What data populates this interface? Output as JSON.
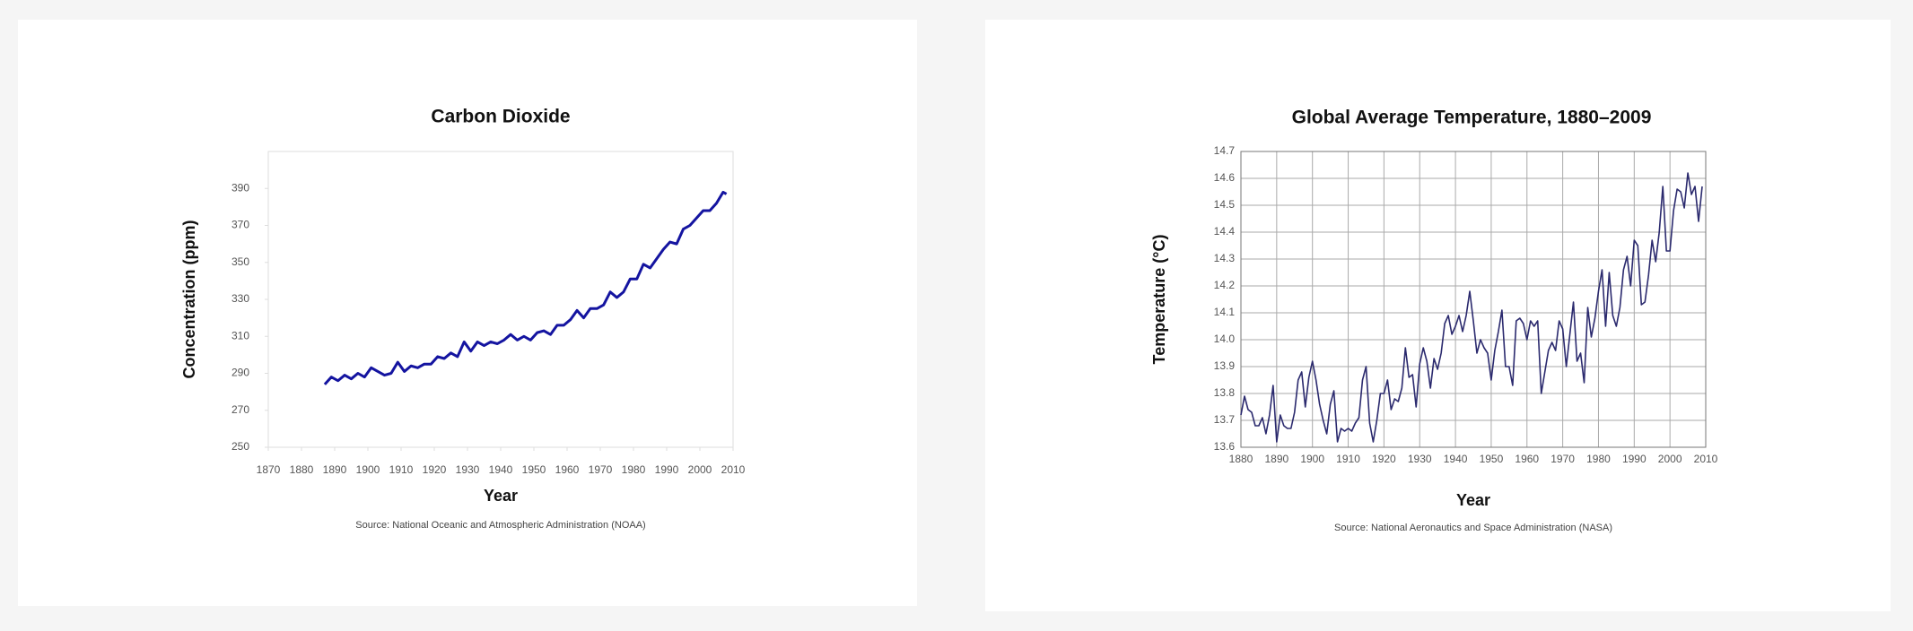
{
  "chart_data": [
    {
      "type": "line",
      "title": "Carbon Dioxide",
      "x_label": "Year",
      "y_label": "Concentration (ppm)",
      "source": "Source: National Oceanic and Atmospheric Administration (NOAA)",
      "x": [
        1887,
        1889,
        1891,
        1893,
        1895,
        1897,
        1899,
        1901,
        1903,
        1905,
        1907,
        1909,
        1911,
        1913,
        1915,
        1917,
        1919,
        1921,
        1923,
        1925,
        1927,
        1929,
        1931,
        1933,
        1935,
        1937,
        1939,
        1941,
        1943,
        1945,
        1947,
        1949,
        1951,
        1953,
        1955,
        1957,
        1959,
        1961,
        1963,
        1965,
        1967,
        1969,
        1971,
        1973,
        1975,
        1977,
        1979,
        1981,
        1983,
        1985,
        1987,
        1989,
        1991,
        1993,
        1995,
        1997,
        1999,
        2001,
        2003,
        2005,
        2007,
        2008
      ],
      "series": [
        {
          "name": "CO2",
          "color": "#1414a0",
          "values": [
            284,
            288,
            286,
            289,
            287,
            290,
            288,
            293,
            291,
            289,
            290,
            296,
            291,
            294,
            293,
            295,
            295,
            299,
            298,
            301,
            299,
            307,
            302,
            307,
            305,
            307,
            306,
            308,
            311,
            308,
            310,
            308,
            312,
            313,
            311,
            316,
            316,
            319,
            324,
            320,
            325,
            325,
            327,
            334,
            331,
            334,
            341,
            341,
            349,
            347,
            352,
            357,
            361,
            360,
            368,
            370,
            374,
            378,
            378,
            382,
            388,
            387
          ]
        }
      ],
      "xlim": [
        1870,
        2010
      ],
      "xticks": [
        1870,
        1880,
        1890,
        1900,
        1910,
        1920,
        1930,
        1940,
        1950,
        1960,
        1970,
        1980,
        1990,
        2000,
        2010
      ],
      "ylim": [
        250,
        410
      ],
      "yticks": [
        250,
        270,
        290,
        310,
        330,
        350,
        370,
        390
      ],
      "grid": false
    },
    {
      "type": "line",
      "title": "Global Average Temperature, 1880–2009",
      "x_label": "Year",
      "y_label": "Temperature (°C)",
      "source": "Source: National Aeronautics and Space Administration (NASA)",
      "x": [
        1880,
        1881,
        1882,
        1883,
        1884,
        1885,
        1886,
        1887,
        1888,
        1889,
        1890,
        1891,
        1892,
        1893,
        1894,
        1895,
        1896,
        1897,
        1898,
        1899,
        1900,
        1901,
        1902,
        1903,
        1904,
        1905,
        1906,
        1907,
        1908,
        1909,
        1910,
        1911,
        1912,
        1913,
        1914,
        1915,
        1916,
        1917,
        1918,
        1919,
        1920,
        1921,
        1922,
        1923,
        1924,
        1925,
        1926,
        1927,
        1928,
        1929,
        1930,
        1931,
        1932,
        1933,
        1934,
        1935,
        1936,
        1937,
        1938,
        1939,
        1940,
        1941,
        1942,
        1943,
        1944,
        1945,
        1946,
        1947,
        1948,
        1949,
        1950,
        1951,
        1952,
        1953,
        1954,
        1955,
        1956,
        1957,
        1958,
        1959,
        1960,
        1961,
        1962,
        1963,
        1964,
        1965,
        1966,
        1967,
        1968,
        1969,
        1970,
        1971,
        1972,
        1973,
        1974,
        1975,
        1976,
        1977,
        1978,
        1979,
        1980,
        1981,
        1982,
        1983,
        1984,
        1985,
        1986,
        1987,
        1988,
        1989,
        1990,
        1991,
        1992,
        1993,
        1994,
        1995,
        1996,
        1997,
        1998,
        1999,
        2000,
        2001,
        2002,
        2003,
        2004,
        2005,
        2006,
        2007,
        2008,
        2009
      ],
      "series": [
        {
          "name": "Temperature",
          "color": "#2b2a6e",
          "values": [
            13.72,
            13.79,
            13.74,
            13.73,
            13.68,
            13.68,
            13.71,
            13.65,
            13.72,
            13.83,
            13.62,
            13.72,
            13.68,
            13.67,
            13.67,
            13.73,
            13.85,
            13.88,
            13.75,
            13.86,
            13.92,
            13.85,
            13.76,
            13.7,
            13.65,
            13.76,
            13.81,
            13.62,
            13.67,
            13.66,
            13.67,
            13.66,
            13.69,
            13.71,
            13.85,
            13.9,
            13.69,
            13.62,
            13.7,
            13.8,
            13.8,
            13.85,
            13.74,
            13.78,
            13.77,
            13.82,
            13.97,
            13.86,
            13.87,
            13.75,
            13.91,
            13.97,
            13.92,
            13.82,
            13.93,
            13.89,
            13.95,
            14.06,
            14.09,
            14.02,
            14.05,
            14.09,
            14.03,
            14.09,
            14.18,
            14.07,
            13.95,
            14.0,
            13.97,
            13.95,
            13.85,
            13.96,
            14.03,
            14.11,
            13.9,
            13.9,
            13.83,
            14.07,
            14.08,
            14.06,
            14.0,
            14.07,
            14.05,
            14.07,
            13.8,
            13.88,
            13.96,
            13.99,
            13.96,
            14.07,
            14.04,
            13.9,
            14.02,
            14.14,
            13.92,
            13.95,
            13.84,
            14.12,
            14.01,
            14.08,
            14.18,
            14.26,
            14.05,
            14.25,
            14.09,
            14.05,
            14.12,
            14.26,
            14.31,
            14.2,
            14.37,
            14.35,
            14.13,
            14.14,
            14.24,
            14.37,
            14.29,
            14.4,
            14.57,
            14.33,
            14.33,
            14.48,
            14.56,
            14.55,
            14.49,
            14.62,
            14.54,
            14.57,
            14.44,
            14.57
          ]
        }
      ],
      "xlim": [
        1880,
        2010
      ],
      "xticks": [
        1880,
        1890,
        1900,
        1910,
        1920,
        1930,
        1940,
        1950,
        1960,
        1970,
        1980,
        1990,
        2000,
        2010
      ],
      "ylim": [
        13.6,
        14.7
      ],
      "yticks": [
        13.6,
        13.7,
        13.8,
        13.9,
        {
          "value": 14,
          "label": "14.0"
        },
        14.1,
        14.2,
        14.3,
        14.4,
        14.5,
        14.6,
        14.7
      ],
      "grid": true
    }
  ]
}
